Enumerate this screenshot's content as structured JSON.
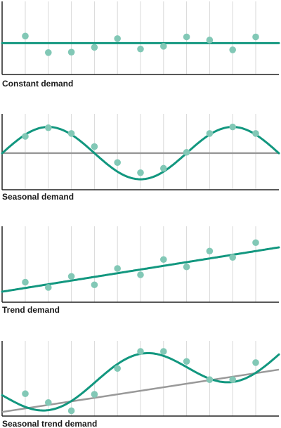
{
  "colors": {
    "demand_line": "#12977f",
    "demand_point": "#82c8b6",
    "baseline": "#999999",
    "grid": "#d9d9d9",
    "axis": "#222222"
  },
  "chart_data": [
    {
      "type": "scatter",
      "title": "Constant demand",
      "x": [
        1,
        2,
        3,
        4,
        5,
        6,
        7,
        8,
        9,
        10,
        11
      ],
      "points": [
        0.34,
        -0.45,
        -0.43,
        -0.2,
        0.22,
        -0.28,
        -0.15,
        0.3,
        0.15,
        -0.32,
        0.3
      ],
      "fit_line": {
        "kind": "constant",
        "value": 0
      },
      "ylim": [
        -1.5,
        2.0
      ],
      "grid": "vertical"
    },
    {
      "type": "scatter",
      "title": "Seasonal demand",
      "x": [
        1,
        2,
        3,
        4,
        5,
        6,
        7,
        8,
        9,
        10,
        11
      ],
      "points": [
        0.64,
        0.97,
        0.75,
        0.25,
        -0.36,
        -0.75,
        -0.58,
        0.03,
        0.75,
        1.0,
        0.75
      ],
      "fit_line": {
        "kind": "seasonal",
        "amplitude": 1,
        "period": 8,
        "peak_x": 2
      },
      "baseline": {
        "kind": "constant",
        "value": 0
      },
      "ylim": [
        -1.4,
        1.5
      ],
      "grid": "vertical"
    },
    {
      "type": "scatter",
      "title": "Trend demand",
      "x": [
        1,
        2,
        3,
        4,
        5,
        6,
        7,
        8,
        9,
        10,
        11
      ],
      "points": [
        0.6,
        0.1,
        1.15,
        0.35,
        1.9,
        1.3,
        2.75,
        2.05,
        3.55,
        2.95,
        4.35
      ],
      "fit_line": {
        "kind": "linear",
        "start": -0.3,
        "slope": 0.35
      },
      "ylim": [
        -1.3,
        5.9
      ],
      "grid": "vertical"
    },
    {
      "type": "scatter",
      "title": "Seasonal trend demand",
      "x": [
        1,
        2,
        3,
        4,
        5,
        6,
        7,
        8,
        9,
        10,
        11
      ],
      "points": [
        0.8,
        0.05,
        -0.65,
        0.75,
        2.95,
        4.4,
        4.4,
        3.55,
        2.0,
        2.0,
        3.45
      ],
      "fit_line": {
        "kind": "seasonal_trend",
        "start": 0.6,
        "slope": 0.3,
        "amplitude": 1.8,
        "period": 8,
        "peak_x": 6.05
      },
      "baseline": {
        "kind": "linear",
        "start": -0.75,
        "slope": 0.3
      },
      "ylim": [
        -1.1,
        5.3
      ],
      "grid": "vertical"
    }
  ]
}
